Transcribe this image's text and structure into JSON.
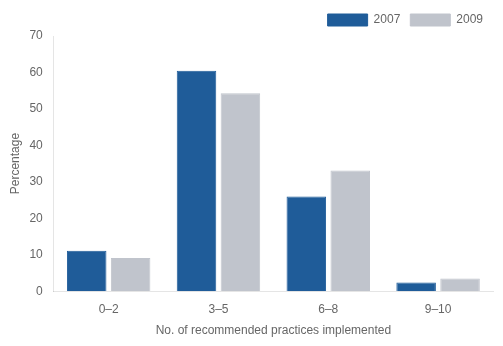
{
  "chart_data": {
    "type": "bar",
    "categories": [
      "0–2",
      "3–5",
      "6–8",
      "9–10"
    ],
    "series": [
      {
        "name": "2007",
        "color": "#1f5c99",
        "values": [
          11.1,
          60.5,
          26.0,
          2.4
        ]
      },
      {
        "name": "2009",
        "color": "#c0c4cc",
        "values": [
          9.1,
          54.3,
          33.1,
          3.5
        ]
      }
    ],
    "xlabel": "No. of recommended practices implemented",
    "ylabel": "Percentage",
    "ylim": [
      0,
      70
    ],
    "yticks": [
      0,
      10,
      20,
      30,
      40,
      50,
      60,
      70
    ],
    "legend": "upper right",
    "grid": false
  }
}
